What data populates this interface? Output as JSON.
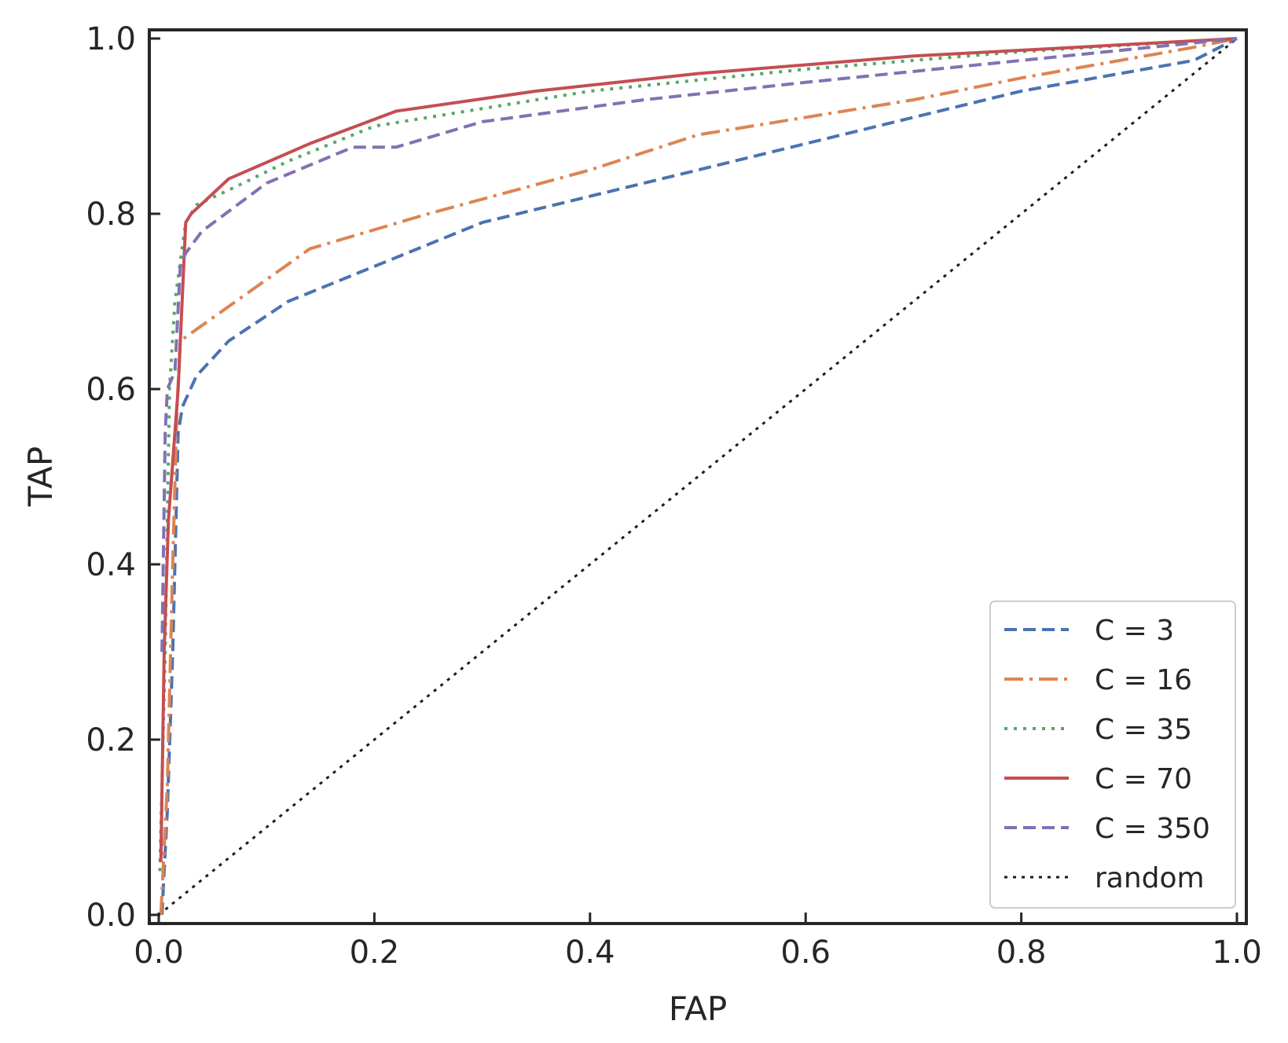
{
  "chart_data": {
    "type": "line",
    "xlabel": "FAP",
    "ylabel": "TAP",
    "xlim": [
      0.0,
      1.0
    ],
    "ylim": [
      0.0,
      1.0
    ],
    "xticks": [
      "0.0",
      "0.2",
      "0.4",
      "0.6",
      "0.8",
      "1.0"
    ],
    "yticks": [
      "0.0",
      "0.2",
      "0.4",
      "0.6",
      "0.8",
      "1.0"
    ],
    "grid": false,
    "legend_position": "bottom-right",
    "series": [
      {
        "name": "C = 3",
        "color": "#4c72b0",
        "style": "dashed",
        "points": [
          [
            0.003,
            0.0
          ],
          [
            0.005,
            0.05
          ],
          [
            0.008,
            0.12
          ],
          [
            0.013,
            0.3
          ],
          [
            0.018,
            0.55
          ],
          [
            0.022,
            0.58
          ],
          [
            0.035,
            0.615
          ],
          [
            0.065,
            0.655
          ],
          [
            0.12,
            0.7
          ],
          [
            0.2,
            0.74
          ],
          [
            0.3,
            0.79
          ],
          [
            0.4,
            0.82
          ],
          [
            0.5,
            0.85
          ],
          [
            0.6,
            0.88
          ],
          [
            0.7,
            0.91
          ],
          [
            0.8,
            0.94
          ],
          [
            0.96,
            0.975
          ],
          [
            1.0,
            1.0
          ]
        ]
      },
      {
        "name": "C = 16",
        "color": "#dd8452",
        "style": "dashdot",
        "points": [
          [
            0.002,
            0.0
          ],
          [
            0.004,
            0.05
          ],
          [
            0.008,
            0.15
          ],
          [
            0.013,
            0.4
          ],
          [
            0.017,
            0.58
          ],
          [
            0.02,
            0.655
          ],
          [
            0.06,
            0.69
          ],
          [
            0.14,
            0.76
          ],
          [
            0.25,
            0.8
          ],
          [
            0.4,
            0.85
          ],
          [
            0.5,
            0.89
          ],
          [
            0.6,
            0.91
          ],
          [
            0.7,
            0.93
          ],
          [
            0.8,
            0.955
          ],
          [
            0.96,
            0.99
          ],
          [
            1.0,
            1.0
          ]
        ]
      },
      {
        "name": "C = 35",
        "color": "#55a868",
        "style": "dotted",
        "points": [
          [
            0.001,
            0.05
          ],
          [
            0.006,
            0.3
          ],
          [
            0.01,
            0.6
          ],
          [
            0.015,
            0.7
          ],
          [
            0.025,
            0.79
          ],
          [
            0.035,
            0.81
          ],
          [
            0.07,
            0.83
          ],
          [
            0.12,
            0.86
          ],
          [
            0.2,
            0.9
          ],
          [
            0.4,
            0.94
          ],
          [
            0.6,
            0.965
          ],
          [
            0.8,
            0.985
          ],
          [
            1.0,
            1.0
          ]
        ]
      },
      {
        "name": "C = 70",
        "color": "#c44e52",
        "style": "solid",
        "points": [
          [
            0.002,
            0.06
          ],
          [
            0.005,
            0.3
          ],
          [
            0.009,
            0.45
          ],
          [
            0.018,
            0.6
          ],
          [
            0.025,
            0.79
          ],
          [
            0.03,
            0.8
          ],
          [
            0.065,
            0.84
          ],
          [
            0.14,
            0.88
          ],
          [
            0.22,
            0.917
          ],
          [
            0.35,
            0.94
          ],
          [
            0.5,
            0.96
          ],
          [
            0.7,
            0.98
          ],
          [
            0.85,
            0.99
          ],
          [
            1.0,
            1.0
          ]
        ]
      },
      {
        "name": "C = 350",
        "color": "#8172b3",
        "style": "dashed",
        "points": [
          [
            0.003,
            0.3
          ],
          [
            0.006,
            0.55
          ],
          [
            0.008,
            0.6
          ],
          [
            0.015,
            0.62
          ],
          [
            0.02,
            0.74
          ],
          [
            0.025,
            0.755
          ],
          [
            0.04,
            0.78
          ],
          [
            0.1,
            0.835
          ],
          [
            0.18,
            0.876
          ],
          [
            0.22,
            0.876
          ],
          [
            0.3,
            0.905
          ],
          [
            0.45,
            0.93
          ],
          [
            0.6,
            0.95
          ],
          [
            0.8,
            0.975
          ],
          [
            1.0,
            1.0
          ]
        ]
      },
      {
        "name": "random",
        "color": "#1a1a1a",
        "style": "dotted-fine",
        "points": [
          [
            0.0,
            0.0
          ],
          [
            1.0,
            1.0
          ]
        ]
      }
    ]
  }
}
